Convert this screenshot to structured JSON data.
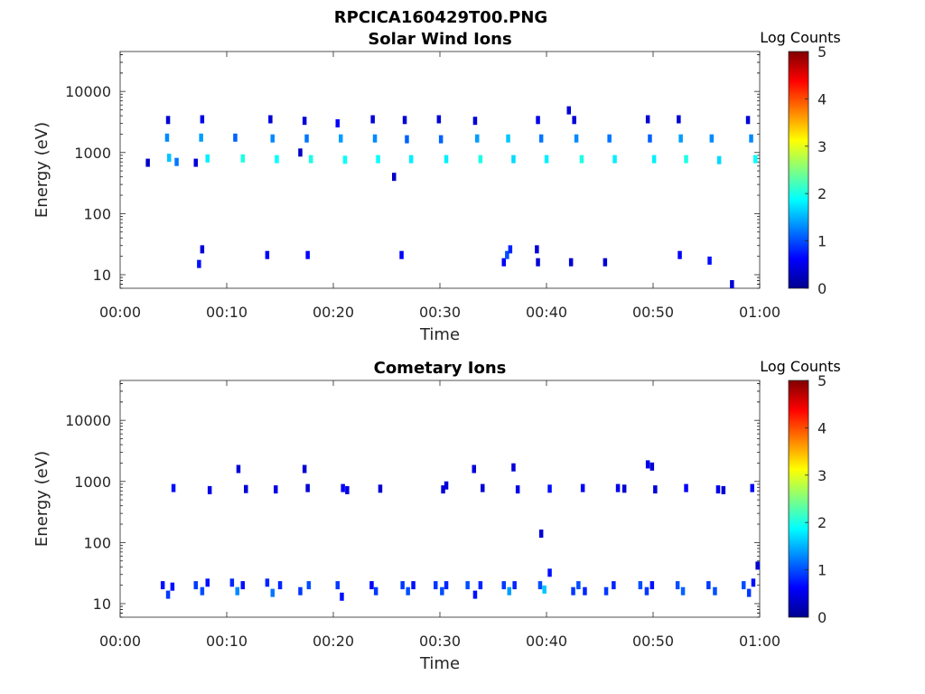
{
  "figure": {
    "title": "RPCICA160429T00.PNG"
  },
  "colorscale": {
    "colors": [
      "#00008f",
      "#0000ff",
      "#0080ff",
      "#00ffff",
      "#80ff80",
      "#ffff00",
      "#ff8000",
      "#ff0000",
      "#800000"
    ]
  },
  "chart_data": [
    {
      "type": "heatmap",
      "title": "Solar Wind Ions",
      "xlabel": "Time",
      "ylabel": "Energy (eV)",
      "xlim": [
        "00:00",
        "01:00"
      ],
      "x_ticks": [
        "00:00",
        "00:10",
        "00:20",
        "00:30",
        "00:40",
        "00:50",
        "01:00"
      ],
      "ylim": [
        6,
        45000
      ],
      "y_scale": "log",
      "y_ticks": [
        {
          "value": 10,
          "label": "10"
        },
        {
          "value": 100,
          "label": "100"
        },
        {
          "value": 1000,
          "label": "1000"
        },
        {
          "value": 10000,
          "label": "10000"
        }
      ],
      "colorbar": {
        "label": "Log Counts",
        "range": [
          0,
          5
        ],
        "ticks": [
          "0",
          "1",
          "2",
          "3",
          "4",
          "5"
        ]
      },
      "points": [
        {
          "t": 2.6,
          "e": 680,
          "v": 0.3
        },
        {
          "t": 4.4,
          "e": 1750,
          "v": 1.3
        },
        {
          "t": 4.5,
          "e": 3400,
          "v": 0.4
        },
        {
          "t": 4.6,
          "e": 820,
          "v": 1.6
        },
        {
          "t": 5.3,
          "e": 700,
          "v": 1.2
        },
        {
          "t": 7.1,
          "e": 680,
          "v": 0.4
        },
        {
          "t": 7.6,
          "e": 1750,
          "v": 1.4
        },
        {
          "t": 7.7,
          "e": 3500,
          "v": 0.5
        },
        {
          "t": 8.2,
          "e": 800,
          "v": 1.8
        },
        {
          "t": 10.8,
          "e": 1750,
          "v": 1.1
        },
        {
          "t": 11.5,
          "e": 800,
          "v": 2.0
        },
        {
          "t": 14.1,
          "e": 3500,
          "v": 0.4
        },
        {
          "t": 14.3,
          "e": 1700,
          "v": 1.3
        },
        {
          "t": 14.7,
          "e": 780,
          "v": 1.9
        },
        {
          "t": 17.3,
          "e": 3300,
          "v": 0.4
        },
        {
          "t": 17.5,
          "e": 1700,
          "v": 1.2
        },
        {
          "t": 16.9,
          "e": 1000,
          "v": 0.3
        },
        {
          "t": 17.9,
          "e": 780,
          "v": 2.0
        },
        {
          "t": 20.4,
          "e": 3000,
          "v": 0.6
        },
        {
          "t": 20.7,
          "e": 1700,
          "v": 1.4
        },
        {
          "t": 21.1,
          "e": 760,
          "v": 1.9
        },
        {
          "t": 23.7,
          "e": 3500,
          "v": 0.4
        },
        {
          "t": 23.9,
          "e": 1700,
          "v": 1.3
        },
        {
          "t": 24.2,
          "e": 780,
          "v": 1.9
        },
        {
          "t": 25.7,
          "e": 400,
          "v": 0.3
        },
        {
          "t": 26.7,
          "e": 3400,
          "v": 0.4
        },
        {
          "t": 26.9,
          "e": 1650,
          "v": 1.1
        },
        {
          "t": 27.3,
          "e": 780,
          "v": 1.8
        },
        {
          "t": 29.9,
          "e": 3500,
          "v": 0.4
        },
        {
          "t": 30.1,
          "e": 1650,
          "v": 1.1
        },
        {
          "t": 30.6,
          "e": 780,
          "v": 1.8
        },
        {
          "t": 33.3,
          "e": 3300,
          "v": 0.4
        },
        {
          "t": 33.5,
          "e": 1700,
          "v": 1.4
        },
        {
          "t": 33.8,
          "e": 780,
          "v": 2.0
        },
        {
          "t": 36.4,
          "e": 1700,
          "v": 1.6
        },
        {
          "t": 36.9,
          "e": 780,
          "v": 1.7
        },
        {
          "t": 39.2,
          "e": 3400,
          "v": 0.5
        },
        {
          "t": 39.5,
          "e": 1700,
          "v": 1.2
        },
        {
          "t": 40.0,
          "e": 780,
          "v": 1.8
        },
        {
          "t": 42.1,
          "e": 4900,
          "v": 0.4
        },
        {
          "t": 42.6,
          "e": 3400,
          "v": 0.4
        },
        {
          "t": 42.8,
          "e": 1700,
          "v": 1.3
        },
        {
          "t": 43.3,
          "e": 780,
          "v": 2.0
        },
        {
          "t": 45.9,
          "e": 1700,
          "v": 1.2
        },
        {
          "t": 46.4,
          "e": 780,
          "v": 1.8
        },
        {
          "t": 49.5,
          "e": 3500,
          "v": 0.4
        },
        {
          "t": 49.7,
          "e": 1700,
          "v": 1.1
        },
        {
          "t": 50.1,
          "e": 780,
          "v": 1.8
        },
        {
          "t": 52.4,
          "e": 3500,
          "v": 0.4
        },
        {
          "t": 52.6,
          "e": 1700,
          "v": 1.4
        },
        {
          "t": 53.1,
          "e": 780,
          "v": 2.0
        },
        {
          "t": 55.5,
          "e": 1700,
          "v": 1.3
        },
        {
          "t": 56.2,
          "e": 750,
          "v": 1.7
        },
        {
          "t": 58.9,
          "e": 3400,
          "v": 0.4
        },
        {
          "t": 59.2,
          "e": 1700,
          "v": 1.3
        },
        {
          "t": 59.6,
          "e": 780,
          "v": 1.9
        },
        {
          "t": 7.4,
          "e": 15,
          "v": 0.7
        },
        {
          "t": 7.7,
          "e": 26,
          "v": 0.4
        },
        {
          "t": 13.8,
          "e": 21,
          "v": 0.6
        },
        {
          "t": 17.6,
          "e": 21,
          "v": 0.6
        },
        {
          "t": 26.4,
          "e": 21,
          "v": 0.6
        },
        {
          "t": 36.0,
          "e": 16,
          "v": 0.6
        },
        {
          "t": 36.3,
          "e": 21,
          "v": 1.0
        },
        {
          "t": 36.6,
          "e": 26,
          "v": 0.8
        },
        {
          "t": 39.1,
          "e": 26,
          "v": 0.4
        },
        {
          "t": 39.2,
          "e": 16,
          "v": 0.4
        },
        {
          "t": 42.3,
          "e": 16,
          "v": 0.4
        },
        {
          "t": 45.5,
          "e": 16,
          "v": 0.4
        },
        {
          "t": 52.5,
          "e": 21,
          "v": 0.6
        },
        {
          "t": 55.3,
          "e": 17,
          "v": 0.7
        },
        {
          "t": 57.4,
          "e": 7,
          "v": 0.4
        }
      ]
    },
    {
      "type": "heatmap",
      "title": "Cometary Ions",
      "xlabel": "Time",
      "ylabel": "Energy (eV)",
      "xlim": [
        "00:00",
        "01:00"
      ],
      "x_ticks": [
        "00:00",
        "00:10",
        "00:20",
        "00:30",
        "00:40",
        "00:50",
        "01:00"
      ],
      "ylim": [
        6,
        45000
      ],
      "y_scale": "log",
      "y_ticks": [
        {
          "value": 10,
          "label": "10"
        },
        {
          "value": 100,
          "label": "100"
        },
        {
          "value": 1000,
          "label": "1000"
        },
        {
          "value": 10000,
          "label": "10000"
        }
      ],
      "colorbar": {
        "label": "Log Counts",
        "range": [
          0,
          5
        ],
        "ticks": [
          "0",
          "1",
          "2",
          "3",
          "4",
          "5"
        ]
      },
      "points": [
        {
          "t": 5.0,
          "e": 780,
          "v": 0.7
        },
        {
          "t": 8.4,
          "e": 720,
          "v": 0.5
        },
        {
          "t": 11.1,
          "e": 1600,
          "v": 0.4
        },
        {
          "t": 11.8,
          "e": 750,
          "v": 0.4
        },
        {
          "t": 14.6,
          "e": 740,
          "v": 0.5
        },
        {
          "t": 17.3,
          "e": 1600,
          "v": 0.4
        },
        {
          "t": 17.6,
          "e": 780,
          "v": 0.4
        },
        {
          "t": 20.9,
          "e": 780,
          "v": 0.6
        },
        {
          "t": 21.3,
          "e": 720,
          "v": 0.5
        },
        {
          "t": 24.4,
          "e": 760,
          "v": 0.4
        },
        {
          "t": 30.3,
          "e": 740,
          "v": 0.4
        },
        {
          "t": 30.6,
          "e": 860,
          "v": 0.4
        },
        {
          "t": 33.2,
          "e": 1600,
          "v": 0.4
        },
        {
          "t": 34.0,
          "e": 780,
          "v": 0.4
        },
        {
          "t": 36.9,
          "e": 1700,
          "v": 0.4
        },
        {
          "t": 37.3,
          "e": 740,
          "v": 0.5
        },
        {
          "t": 39.5,
          "e": 140,
          "v": 0.4
        },
        {
          "t": 40.3,
          "e": 760,
          "v": 0.7
        },
        {
          "t": 43.4,
          "e": 780,
          "v": 0.6
        },
        {
          "t": 46.7,
          "e": 780,
          "v": 0.5
        },
        {
          "t": 47.3,
          "e": 760,
          "v": 0.4
        },
        {
          "t": 49.5,
          "e": 1900,
          "v": 0.5
        },
        {
          "t": 49.9,
          "e": 1750,
          "v": 0.4
        },
        {
          "t": 50.2,
          "e": 740,
          "v": 0.4
        },
        {
          "t": 53.1,
          "e": 780,
          "v": 0.6
        },
        {
          "t": 56.1,
          "e": 740,
          "v": 0.5
        },
        {
          "t": 56.6,
          "e": 720,
          "v": 0.4
        },
        {
          "t": 59.3,
          "e": 780,
          "v": 0.6
        },
        {
          "t": 59.8,
          "e": 42,
          "v": 0.4
        },
        {
          "t": 4.0,
          "e": 20,
          "v": 0.7
        },
        {
          "t": 4.5,
          "e": 14,
          "v": 0.9
        },
        {
          "t": 4.9,
          "e": 19,
          "v": 0.7
        },
        {
          "t": 7.1,
          "e": 20,
          "v": 0.9
        },
        {
          "t": 7.7,
          "e": 16,
          "v": 1.0
        },
        {
          "t": 8.2,
          "e": 22,
          "v": 0.7
        },
        {
          "t": 10.5,
          "e": 22,
          "v": 0.8
        },
        {
          "t": 11.0,
          "e": 16,
          "v": 1.3
        },
        {
          "t": 11.5,
          "e": 20,
          "v": 0.7
        },
        {
          "t": 13.8,
          "e": 22,
          "v": 0.8
        },
        {
          "t": 14.3,
          "e": 15,
          "v": 1.2
        },
        {
          "t": 15.0,
          "e": 20,
          "v": 0.8
        },
        {
          "t": 16.9,
          "e": 16,
          "v": 0.9
        },
        {
          "t": 17.7,
          "e": 20,
          "v": 1.0
        },
        {
          "t": 20.4,
          "e": 20,
          "v": 0.9
        },
        {
          "t": 20.8,
          "e": 13,
          "v": 0.7
        },
        {
          "t": 23.6,
          "e": 20,
          "v": 0.6
        },
        {
          "t": 24.0,
          "e": 16,
          "v": 0.9
        },
        {
          "t": 26.5,
          "e": 20,
          "v": 0.9
        },
        {
          "t": 27.0,
          "e": 16,
          "v": 1.0
        },
        {
          "t": 27.5,
          "e": 20,
          "v": 0.7
        },
        {
          "t": 29.6,
          "e": 20,
          "v": 0.9
        },
        {
          "t": 30.2,
          "e": 16,
          "v": 1.0
        },
        {
          "t": 30.6,
          "e": 20,
          "v": 0.8
        },
        {
          "t": 32.6,
          "e": 20,
          "v": 1.0
        },
        {
          "t": 33.3,
          "e": 14,
          "v": 0.7
        },
        {
          "t": 33.8,
          "e": 20,
          "v": 0.8
        },
        {
          "t": 36.0,
          "e": 20,
          "v": 0.9
        },
        {
          "t": 36.5,
          "e": 16,
          "v": 1.4
        },
        {
          "t": 37.0,
          "e": 20,
          "v": 0.8
        },
        {
          "t": 39.4,
          "e": 20,
          "v": 1.0
        },
        {
          "t": 39.8,
          "e": 17,
          "v": 1.6
        },
        {
          "t": 40.3,
          "e": 32,
          "v": 0.7
        },
        {
          "t": 42.5,
          "e": 16,
          "v": 0.9
        },
        {
          "t": 43.0,
          "e": 20,
          "v": 1.0
        },
        {
          "t": 43.6,
          "e": 16,
          "v": 0.8
        },
        {
          "t": 45.6,
          "e": 16,
          "v": 0.9
        },
        {
          "t": 46.3,
          "e": 20,
          "v": 0.8
        },
        {
          "t": 48.8,
          "e": 20,
          "v": 1.0
        },
        {
          "t": 49.4,
          "e": 16,
          "v": 0.9
        },
        {
          "t": 49.9,
          "e": 20,
          "v": 0.7
        },
        {
          "t": 52.3,
          "e": 20,
          "v": 1.0
        },
        {
          "t": 52.8,
          "e": 16,
          "v": 1.1
        },
        {
          "t": 55.2,
          "e": 20,
          "v": 0.9
        },
        {
          "t": 55.8,
          "e": 16,
          "v": 1.0
        },
        {
          "t": 58.5,
          "e": 20,
          "v": 1.0
        },
        {
          "t": 59.0,
          "e": 15,
          "v": 0.9
        },
        {
          "t": 59.4,
          "e": 22,
          "v": 0.7
        }
      ]
    }
  ]
}
